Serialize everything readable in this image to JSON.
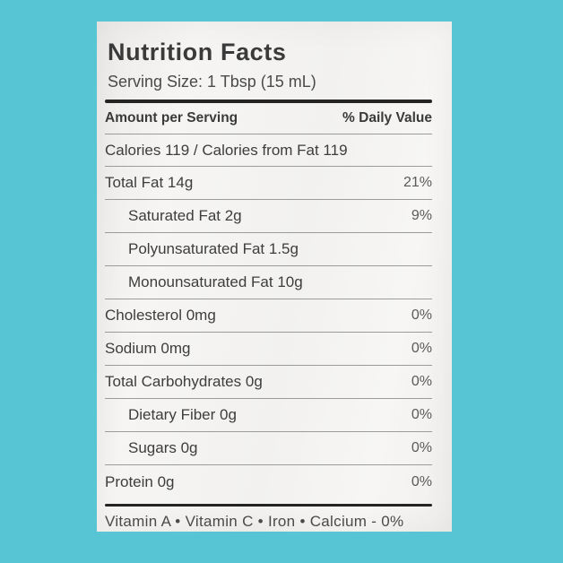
{
  "colors": {
    "background": "#57c5d4",
    "paper": "#f4f3f1",
    "ink": "#3d3d3d",
    "value_ink": "#5a5a5a",
    "rule_thin": "#9b9b9b",
    "rule_thick": "#242424"
  },
  "title": "Nutrition Facts",
  "serving_size": "Serving Size: 1 Tbsp (15 mL)",
  "header": {
    "amount_label": "Amount per Serving",
    "daily_value_label": "% Daily Value"
  },
  "calories_line": "Calories 119 / Calories from Fat 119",
  "rows": [
    {
      "name": "Total Fat 14g",
      "dv": "21%",
      "indent": false
    },
    {
      "name": "Saturated Fat 2g",
      "dv": "9%",
      "indent": true
    },
    {
      "name": "Polyunsaturated Fat 1.5g",
      "dv": "",
      "indent": true
    },
    {
      "name": "Monounsaturated Fat 10g",
      "dv": "",
      "indent": true
    },
    {
      "name": "Cholesterol 0mg",
      "dv": "0%",
      "indent": false
    },
    {
      "name": "Sodium 0mg",
      "dv": "0%",
      "indent": false
    },
    {
      "name": "Total Carbohydrates 0g",
      "dv": "0%",
      "indent": false
    },
    {
      "name": "Dietary Fiber 0g",
      "dv": "0%",
      "indent": true
    },
    {
      "name": "Sugars 0g",
      "dv": "0%",
      "indent": true
    },
    {
      "name": "Protein 0g",
      "dv": "0%",
      "indent": false
    }
  ],
  "footer": "Vitamin A • Vitamin C • Iron • Calcium - 0%"
}
